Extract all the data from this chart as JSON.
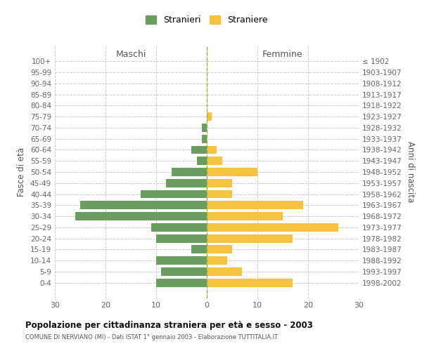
{
  "age_groups": [
    "100+",
    "95-99",
    "90-94",
    "85-89",
    "80-84",
    "75-79",
    "70-74",
    "65-69",
    "60-64",
    "55-59",
    "50-54",
    "45-49",
    "40-44",
    "35-39",
    "30-34",
    "25-29",
    "20-24",
    "15-19",
    "10-14",
    "5-9",
    "0-4"
  ],
  "birth_years": [
    "≤ 1902",
    "1903-1907",
    "1908-1912",
    "1913-1917",
    "1918-1922",
    "1923-1927",
    "1928-1932",
    "1933-1937",
    "1938-1942",
    "1943-1947",
    "1948-1952",
    "1953-1957",
    "1958-1962",
    "1963-1967",
    "1968-1972",
    "1973-1977",
    "1978-1982",
    "1983-1987",
    "1988-1992",
    "1993-1997",
    "1998-2002"
  ],
  "maschi": [
    0,
    0,
    0,
    0,
    0,
    0,
    1,
    1,
    3,
    2,
    7,
    8,
    13,
    25,
    26,
    11,
    10,
    3,
    10,
    9,
    10
  ],
  "femmine": [
    0,
    0,
    0,
    0,
    0,
    1,
    0,
    0,
    2,
    3,
    10,
    5,
    5,
    19,
    15,
    26,
    17,
    5,
    4,
    7,
    17
  ],
  "maschi_color": "#6a9e5e",
  "femmine_color": "#f5c242",
  "background_color": "#ffffff",
  "grid_color": "#cccccc",
  "title": "Popolazione per cittadinanza straniera per età e sesso - 2003",
  "subtitle": "COMUNE DI NERVIANO (MI) - Dati ISTAT 1° gennaio 2003 - Elaborazione TUTTITALIA.IT",
  "xlabel_left": "Maschi",
  "xlabel_right": "Femmine",
  "ylabel_left": "Fasce di età",
  "ylabel_right": "Anni di nascita",
  "legend_stranieri": "Stranieri",
  "legend_straniere": "Straniere",
  "xlim": 30,
  "bar_height": 0.75
}
